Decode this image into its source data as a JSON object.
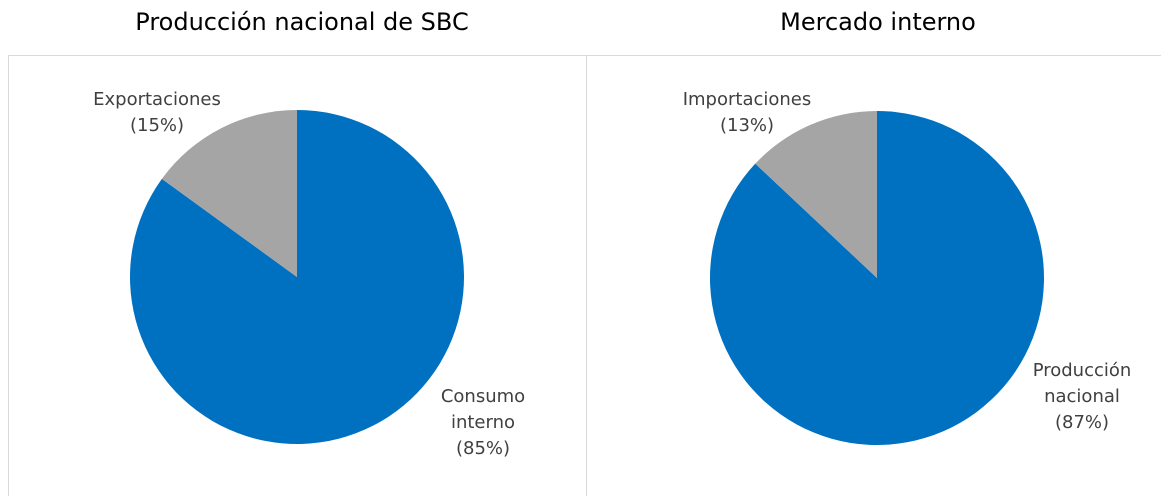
{
  "chart_data": [
    {
      "type": "pie",
      "title": "Producción nacional de SBC",
      "categories": [
        "Consumo interno",
        "Exportaciones"
      ],
      "values": [
        85,
        15
      ],
      "value_labels": [
        "(85%)",
        "(15%)"
      ],
      "colors": [
        "#0070c0",
        "#a5a5a5"
      ]
    },
    {
      "type": "pie",
      "title": "Mercado interno",
      "categories": [
        "Producción nacional",
        "Importaciones"
      ],
      "values": [
        87,
        13
      ],
      "value_labels": [
        "(87%)",
        "(13%)"
      ],
      "colors": [
        "#0070c0",
        "#a5a5a5"
      ]
    }
  ]
}
